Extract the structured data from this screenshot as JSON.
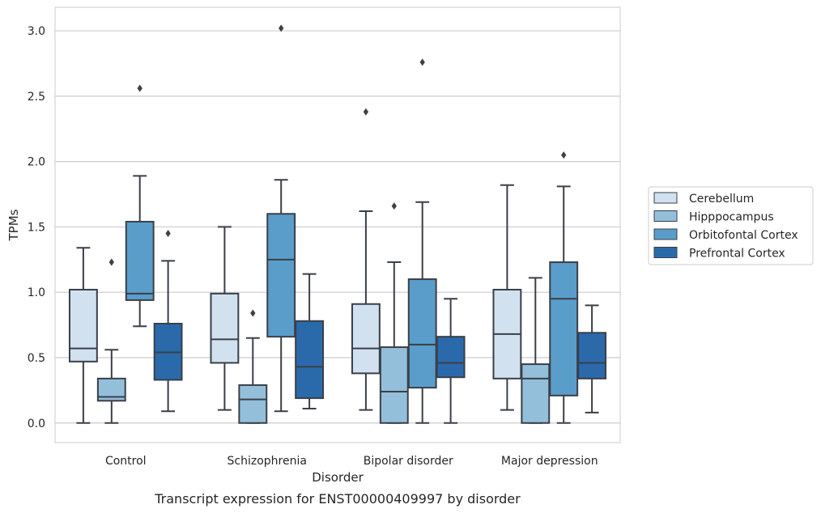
{
  "chart_data": {
    "type": "box",
    "xlabel": "Disorder",
    "ylabel": "TPMs",
    "caption": "Transcript expression for ENST00000409997 by disorder",
    "ylim": [
      -0.15,
      3.18
    ],
    "yticks": [
      "0.0",
      "0.5",
      "1.0",
      "1.5",
      "2.0",
      "2.5",
      "3.0"
    ],
    "grid": true,
    "legend_position": "right",
    "categories": [
      "Control",
      "Schizophrenia",
      "Bipolar disorder",
      "Major depression"
    ],
    "series": [
      {
        "name": "Cerebellum",
        "color": "#d1e1f0",
        "boxes": [
          {
            "whisker_low": 0.0,
            "q1": 0.47,
            "median": 0.57,
            "q3": 1.02,
            "whisker_high": 1.34,
            "outliers": []
          },
          {
            "whisker_low": 0.1,
            "q1": 0.46,
            "median": 0.64,
            "q3": 0.99,
            "whisker_high": 1.5,
            "outliers": []
          },
          {
            "whisker_low": 0.1,
            "q1": 0.38,
            "median": 0.57,
            "q3": 0.91,
            "whisker_high": 1.62,
            "outliers": [
              2.38
            ]
          },
          {
            "whisker_low": 0.1,
            "q1": 0.34,
            "median": 0.68,
            "q3": 1.02,
            "whisker_high": 1.82,
            "outliers": []
          }
        ]
      },
      {
        "name": "Hipppocampus",
        "color": "#93bfdb",
        "boxes": [
          {
            "whisker_low": 0.0,
            "q1": 0.17,
            "median": 0.2,
            "q3": 0.34,
            "whisker_high": 0.56,
            "outliers": [
              1.23
            ]
          },
          {
            "whisker_low": 0.0,
            "q1": 0.0,
            "median": 0.18,
            "q3": 0.29,
            "whisker_high": 0.65,
            "outliers": [
              0.84
            ]
          },
          {
            "whisker_low": 0.0,
            "q1": 0.0,
            "median": 0.24,
            "q3": 0.58,
            "whisker_high": 1.23,
            "outliers": [
              1.66
            ]
          },
          {
            "whisker_low": 0.0,
            "q1": 0.0,
            "median": 0.34,
            "q3": 0.45,
            "whisker_high": 1.11,
            "outliers": []
          }
        ]
      },
      {
        "name": "Orbitofontal Cortex",
        "color": "#5a9dca",
        "boxes": [
          {
            "whisker_low": 0.74,
            "q1": 0.94,
            "median": 0.99,
            "q3": 1.54,
            "whisker_high": 1.89,
            "outliers": [
              2.56
            ]
          },
          {
            "whisker_low": 0.09,
            "q1": 0.66,
            "median": 1.25,
            "q3": 1.6,
            "whisker_high": 1.86,
            "outliers": [
              3.02
            ]
          },
          {
            "whisker_low": 0.0,
            "q1": 0.27,
            "median": 0.6,
            "q3": 1.1,
            "whisker_high": 1.69,
            "outliers": [
              2.76
            ]
          },
          {
            "whisker_low": 0.0,
            "q1": 0.21,
            "median": 0.95,
            "q3": 1.23,
            "whisker_high": 1.81,
            "outliers": [
              2.05
            ]
          }
        ]
      },
      {
        "name": "Prefrontal Cortex",
        "color": "#2a6aab",
        "boxes": [
          {
            "whisker_low": 0.09,
            "q1": 0.33,
            "median": 0.54,
            "q3": 0.76,
            "whisker_high": 1.24,
            "outliers": [
              1.45
            ]
          },
          {
            "whisker_low": 0.11,
            "q1": 0.19,
            "median": 0.43,
            "q3": 0.78,
            "whisker_high": 1.14,
            "outliers": []
          },
          {
            "whisker_low": 0.0,
            "q1": 0.35,
            "median": 0.46,
            "q3": 0.66,
            "whisker_high": 0.95,
            "outliers": []
          },
          {
            "whisker_low": 0.08,
            "q1": 0.34,
            "median": 0.46,
            "q3": 0.69,
            "whisker_high": 0.9,
            "outliers": []
          }
        ]
      }
    ]
  },
  "colors": {
    "edge": "#3b3f48",
    "grid": "#cccccc",
    "frame": "#cccccc"
  }
}
